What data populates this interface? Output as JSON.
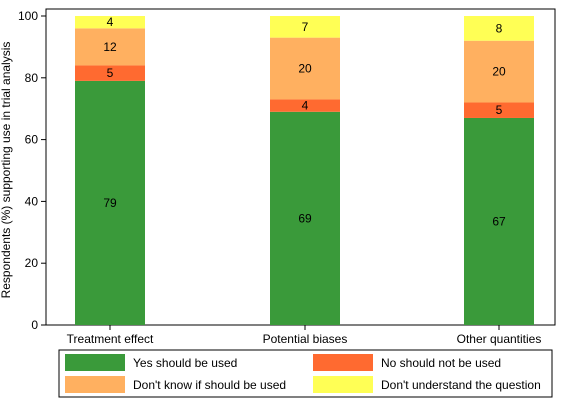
{
  "chart_data": {
    "type": "bar",
    "stacked": true,
    "categories": [
      "Treatment effect",
      "Potential biases",
      "Other quantities"
    ],
    "series": [
      {
        "name": "Yes should be used",
        "values": [
          79,
          69,
          67
        ],
        "color": "#3a9a3a"
      },
      {
        "name": "No should not be used",
        "values": [
          5,
          4,
          5
        ],
        "color": "#ff6a30"
      },
      {
        "name": "Don't know if should be used",
        "values": [
          12,
          20,
          20
        ],
        "color": "#ffb060"
      },
      {
        "name": "Don't understand the question",
        "values": [
          4,
          7,
          8
        ],
        "color": "#ffff55"
      }
    ],
    "ylabel": "Respondents (%) supporting use in trial analysis",
    "ylim": [
      0,
      100
    ],
    "yticks": [
      0,
      20,
      40,
      60,
      80,
      100
    ],
    "grid": false,
    "legend_position": "bottom"
  }
}
